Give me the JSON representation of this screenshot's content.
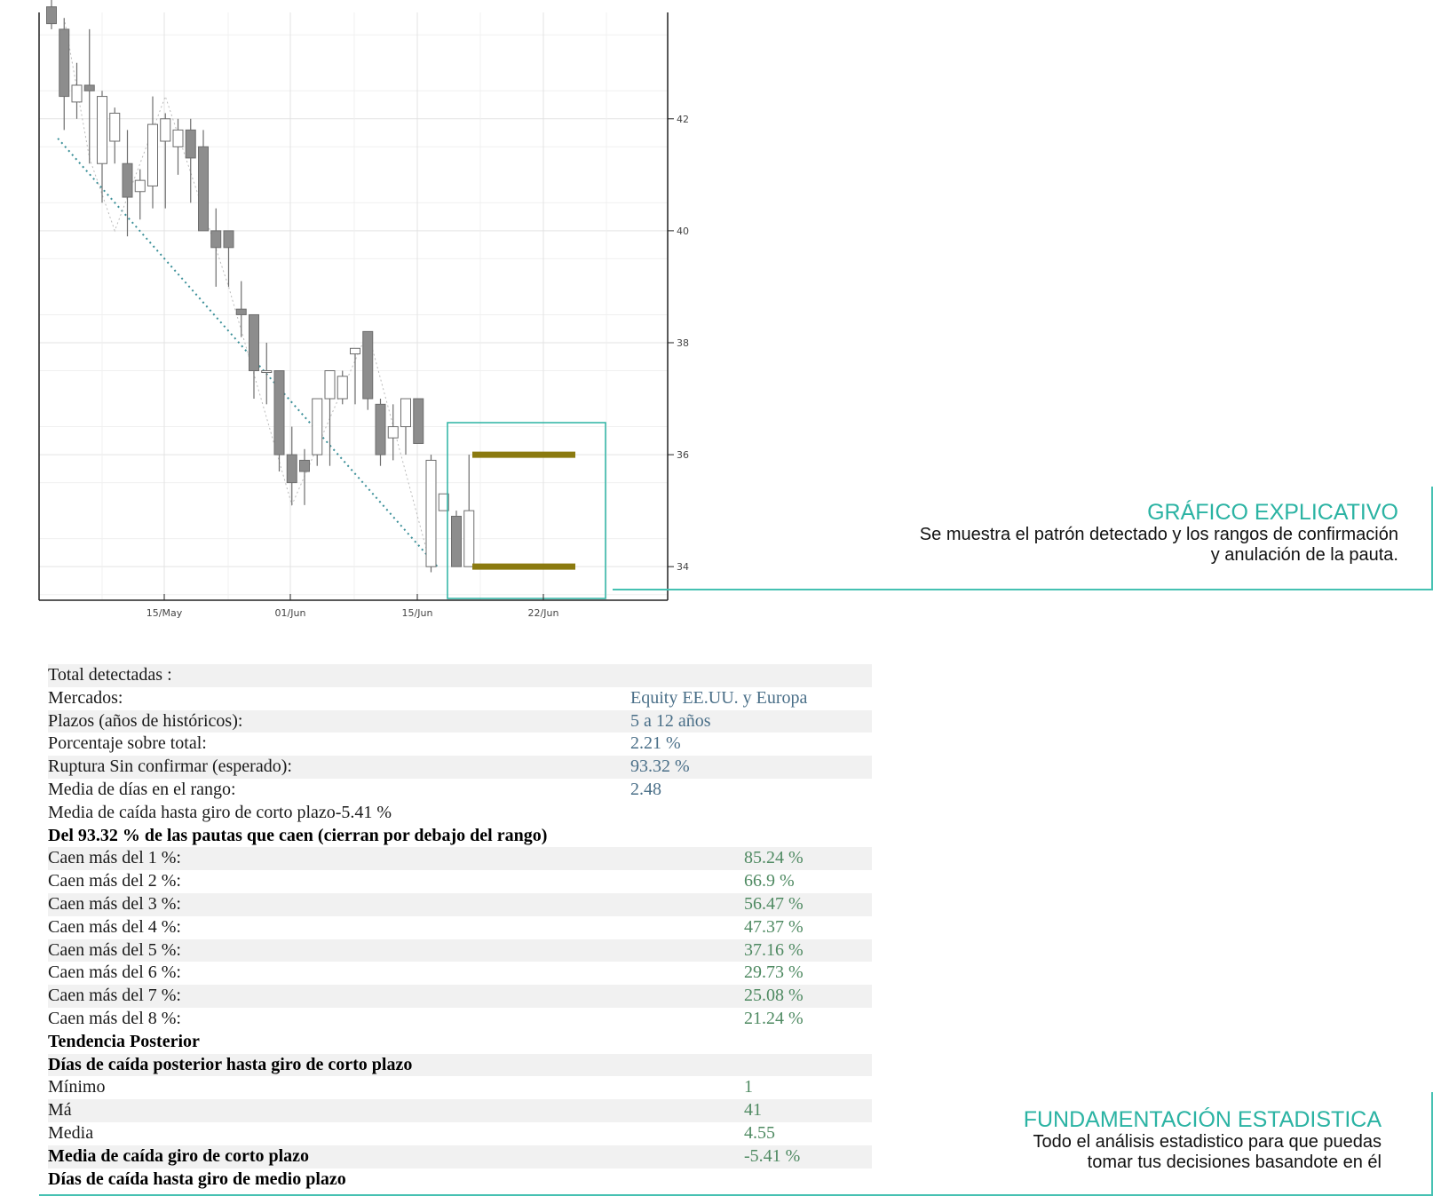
{
  "chart_data": {
    "type": "candlestick",
    "x_ticks": [
      "15/May",
      "01/Jun",
      "15/Jun",
      "22/Jun"
    ],
    "y_ticks": [
      34,
      36,
      38,
      40,
      42
    ],
    "ylim": [
      33.4,
      43.9
    ],
    "grid": true,
    "candles": [
      {
        "o": 44.0,
        "h": 44.2,
        "l": 43.6,
        "c": 43.7
      },
      {
        "o": 43.6,
        "h": 43.8,
        "l": 41.8,
        "c": 42.4
      },
      {
        "o": 42.3,
        "h": 43.0,
        "l": 42.0,
        "c": 42.6
      },
      {
        "o": 42.6,
        "h": 43.6,
        "l": 41.2,
        "c": 42.5
      },
      {
        "o": 41.2,
        "h": 42.5,
        "l": 40.5,
        "c": 42.4
      },
      {
        "o": 41.6,
        "h": 42.2,
        "l": 41.2,
        "c": 42.1
      },
      {
        "o": 41.2,
        "h": 41.8,
        "l": 39.9,
        "c": 40.6
      },
      {
        "o": 40.7,
        "h": 41.1,
        "l": 40.2,
        "c": 40.9
      },
      {
        "o": 40.8,
        "h": 42.4,
        "l": 40.4,
        "c": 41.9
      },
      {
        "o": 41.6,
        "h": 42.1,
        "l": 40.4,
        "c": 42.0
      },
      {
        "o": 41.5,
        "h": 42.0,
        "l": 41.0,
        "c": 41.8
      },
      {
        "o": 41.8,
        "h": 42.0,
        "l": 40.5,
        "c": 41.3
      },
      {
        "o": 41.5,
        "h": 41.8,
        "l": 40.0,
        "c": 40.0
      },
      {
        "o": 40.0,
        "h": 40.4,
        "l": 39.0,
        "c": 39.7
      },
      {
        "o": 40.0,
        "h": 40.0,
        "l": 39.0,
        "c": 39.7
      },
      {
        "o": 38.6,
        "h": 39.1,
        "l": 38.1,
        "c": 38.5
      },
      {
        "o": 38.5,
        "h": 38.5,
        "l": 37.0,
        "c": 37.5
      },
      {
        "o": 37.5,
        "h": 38.0,
        "l": 36.9,
        "c": 37.5
      },
      {
        "o": 37.5,
        "h": 37.5,
        "l": 35.7,
        "c": 36.0
      },
      {
        "o": 36.0,
        "h": 36.5,
        "l": 35.1,
        "c": 35.5
      },
      {
        "o": 35.9,
        "h": 36.1,
        "l": 35.1,
        "c": 35.7
      },
      {
        "o": 36.0,
        "h": 37.0,
        "l": 35.8,
        "c": 37.0
      },
      {
        "o": 37.0,
        "h": 37.5,
        "l": 35.8,
        "c": 37.5
      },
      {
        "o": 37.0,
        "h": 37.5,
        "l": 36.9,
        "c": 37.4
      },
      {
        "o": 37.8,
        "h": 37.8,
        "l": 36.9,
        "c": 37.9
      },
      {
        "o": 38.2,
        "h": 38.2,
        "l": 36.8,
        "c": 37.0
      },
      {
        "o": 36.9,
        "h": 37.0,
        "l": 35.8,
        "c": 36.0
      },
      {
        "o": 36.3,
        "h": 36.9,
        "l": 35.9,
        "c": 36.5
      },
      {
        "o": 36.5,
        "h": 37.0,
        "l": 36.0,
        "c": 37.0
      },
      {
        "o": 37.0,
        "h": 37.0,
        "l": 36.2,
        "c": 36.2
      },
      {
        "o": 34.0,
        "h": 36.0,
        "l": 33.9,
        "c": 35.9
      },
      {
        "o": 35.0,
        "h": 35.3,
        "l": 35.0,
        "c": 35.3
      },
      {
        "o": 34.9,
        "h": 35.0,
        "l": 34.0,
        "c": 34.0
      },
      {
        "o": 34.0,
        "h": 36.0,
        "l": 34.0,
        "c": 35.0
      }
    ],
    "trendline": {
      "from": {
        "x": 0.5,
        "y": 41.65
      },
      "to": {
        "x": 30.5,
        "y": 34.0
      }
    },
    "confirmation_level": 36.0,
    "invalidation_level": 34.0
  },
  "annotations": {
    "chart": {
      "title": "GRÁFICO EXPLICATIVO",
      "line1": "Se muestra el patrón detectado y los rangos de confirmación",
      "line2": "y anulación de la pauta."
    },
    "stats": {
      "title": "FUNDAMENTACIÓN ESTADISTICA",
      "line1": "Todo el análisis estadistico para que puedas",
      "line2": "tomar tus decisiones basandote en él"
    }
  },
  "colors": {
    "accent": "#2bb3a3",
    "range": "#8b7a0f",
    "bear": "#8d8d8d",
    "value_blue": "#4a6f88",
    "value_green": "#4f8a62"
  },
  "stats_rows": [
    {
      "label": "Total detectadas :",
      "value": "",
      "col": 1,
      "bold": false,
      "shade": true
    },
    {
      "label": "Mercados:",
      "value": "Equity EE.UU. y Europa",
      "col": 1,
      "bold": false,
      "shade": false
    },
    {
      "label": "Plazos (años de históricos):",
      "value": " 5 a 12 años",
      "col": 1,
      "bold": false,
      "shade": true
    },
    {
      "label": "Porcentaje sobre total:",
      "value": "2.21 %",
      "col": 1,
      "bold": false,
      "shade": false
    },
    {
      "label": "Ruptura Sin confirmar (esperado):",
      "value": "93.32 %",
      "col": 1,
      "bold": false,
      "shade": true
    },
    {
      "label": "Media de días en el rango:",
      "value": "2.48",
      "col": 1,
      "bold": false,
      "shade": false
    },
    {
      "label": "Media de caída hasta giro de corto plazo-5.41 %",
      "value": "",
      "col": 1,
      "bold": false,
      "shade": false
    },
    {
      "label": "Del 93.32 % de las pautas que caen (cierran por debajo del rango)",
      "value": "",
      "col": 1,
      "bold": true,
      "shade": false
    },
    {
      "label": "Caen más del 1 %:",
      "value": "85.24 %",
      "col": 2,
      "bold": false,
      "shade": true
    },
    {
      "label": "Caen más del 2 %:",
      "value": " 66.9 %",
      "col": 2,
      "bold": false,
      "shade": false
    },
    {
      "label": "Caen más del 3 %:",
      "value": "56.47 %",
      "col": 2,
      "bold": false,
      "shade": true
    },
    {
      "label": "Caen más del 4 %:",
      "value": "47.37 %",
      "col": 2,
      "bold": false,
      "shade": false
    },
    {
      "label": "Caen más del 5 %:",
      "value": "37.16 %",
      "col": 2,
      "bold": false,
      "shade": true
    },
    {
      "label": "Caen más del 6 %:",
      "value": "29.73 %",
      "col": 2,
      "bold": false,
      "shade": false
    },
    {
      "label": "Caen más del 7 %:",
      "value": "25.08 %",
      "col": 2,
      "bold": false,
      "shade": true
    },
    {
      "label": "Caen más del 8 %:",
      "value": "21.24 %",
      "col": 2,
      "bold": false,
      "shade": false
    },
    {
      "label": "Tendencia Posterior",
      "value": "",
      "col": 2,
      "bold": true,
      "shade": false
    },
    {
      "label": "Días de caída posterior hasta giro de corto plazo",
      "value": "",
      "col": 2,
      "bold": true,
      "shade": true
    },
    {
      "label": "Mínimo",
      "value": "1",
      "col": 2,
      "bold": false,
      "shade": false
    },
    {
      "label": "Má",
      "value": "41",
      "col": 2,
      "bold": false,
      "shade": true
    },
    {
      "label": "Media",
      "value": "4.55",
      "col": 2,
      "bold": false,
      "shade": false
    },
    {
      "label": "Media de caída giro de corto plazo",
      "value": "-5.41 %",
      "col": 2,
      "bold": true,
      "shade": true
    },
    {
      "label": "Días de caída hasta giro de medio plazo",
      "value": "",
      "col": 2,
      "bold": true,
      "shade": false
    }
  ]
}
